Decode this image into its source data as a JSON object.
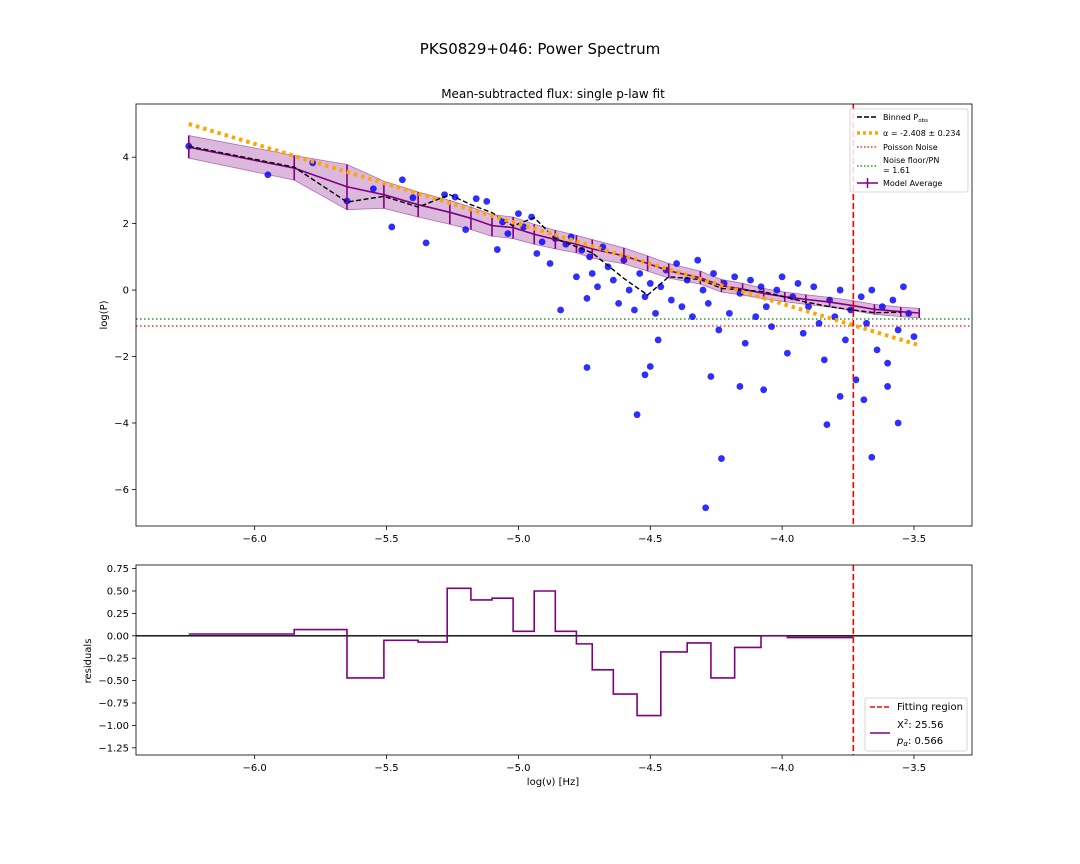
{
  "figure": {
    "suptitle": "PKS0829+046: Power Spectrum"
  },
  "colors": {
    "binned": "#000000",
    "alpha_fit": "#FFA500",
    "poisson": "#FF0000",
    "noise_floor": "#008000",
    "model": "#800080",
    "model_band": "#800080",
    "scatter": "#0000FF",
    "fit_region": "#FF0000"
  },
  "chart_data": [
    {
      "type": "scatter",
      "title": "Mean-subtracted flux: single p-law fit",
      "xlabel": "",
      "ylabel": "log(P)",
      "xlim": [
        -6.45,
        -3.28
      ],
      "ylim": [
        -7.1,
        5.6
      ],
      "xticks": [
        -6.0,
        -5.5,
        -5.0,
        -4.5,
        -4.0,
        -3.5
      ],
      "xtick_labels": [
        "−6.0",
        "−5.5",
        "−5.0",
        "−4.5",
        "−4.0",
        "−3.5"
      ],
      "yticks": [
        4,
        2,
        0,
        -2,
        -4,
        -6
      ],
      "ytick_labels": [
        "4",
        "2",
        "0",
        "−2",
        "−4",
        "−6"
      ],
      "legend_position": "top-right",
      "legend": {
        "binned": "Binned P",
        "binned_sub": "obs",
        "alpha": "α = -2.408 ± 0.234",
        "poisson": "Poisson Noise",
        "noise_floor_line1": "Noise floor/PN",
        "noise_floor_line2": "= 1.61",
        "model": "Model Average"
      },
      "fit_cutoff_x": -3.73,
      "poisson_noise_level": -1.08,
      "noise_floor_level": -0.87,
      "alpha_fit_line": {
        "x": [
          -6.25,
          -3.48
        ],
        "y": [
          5.0,
          -1.66
        ]
      },
      "binned_obs": {
        "x": [
          -6.25,
          -5.85,
          -5.65,
          -5.51,
          -5.38,
          -5.26,
          -5.18,
          -5.1,
          -5.02,
          -4.94,
          -4.86,
          -4.72,
          -4.6,
          -4.51,
          -4.43,
          -4.31,
          -4.23,
          -4.15,
          -4.07,
          -3.99,
          -3.91,
          -3.82,
          -3.73,
          -3.65,
          -3.55
        ],
        "y": [
          4.33,
          3.7,
          2.65,
          2.82,
          2.5,
          2.87,
          2.57,
          2.33,
          1.93,
          2.18,
          1.55,
          1.12,
          0.35,
          -0.15,
          0.4,
          0.32,
          0.05,
          0.0,
          -0.05,
          -0.21,
          -0.36,
          -0.5,
          -0.6,
          -0.68,
          -0.67
        ]
      },
      "model_average": {
        "x": [
          -6.25,
          -5.85,
          -5.65,
          -5.51,
          -5.38,
          -5.26,
          -5.18,
          -5.1,
          -5.02,
          -4.94,
          -4.86,
          -4.78,
          -4.72,
          -4.6,
          -4.51,
          -4.43,
          -4.31,
          -4.23,
          -4.15,
          -4.07,
          -3.99,
          -3.91,
          -3.82,
          -3.73,
          -3.65,
          -3.55,
          -3.48
        ],
        "y": [
          4.3,
          3.67,
          3.11,
          2.87,
          2.57,
          2.34,
          2.16,
          1.94,
          1.88,
          1.68,
          1.52,
          1.38,
          1.24,
          1.03,
          0.8,
          0.58,
          0.37,
          0.13,
          0.03,
          -0.1,
          -0.2,
          -0.28,
          -0.36,
          -0.47,
          -0.58,
          -0.65,
          -0.69
        ],
        "band_upper": [
          4.65,
          4.05,
          3.78,
          3.28,
          2.95,
          2.7,
          2.5,
          2.27,
          2.2,
          1.98,
          1.8,
          1.65,
          1.52,
          1.27,
          1.03,
          0.8,
          0.57,
          0.32,
          0.2,
          0.05,
          -0.06,
          -0.14,
          -0.22,
          -0.32,
          -0.43,
          -0.51,
          -0.55
        ],
        "band_lower": [
          3.97,
          3.31,
          2.42,
          2.46,
          2.2,
          1.98,
          1.82,
          1.62,
          1.55,
          1.38,
          1.24,
          1.12,
          0.96,
          0.79,
          0.57,
          0.36,
          0.18,
          -0.06,
          -0.15,
          -0.26,
          -0.35,
          -0.43,
          -0.51,
          -0.62,
          -0.73,
          -0.8,
          -0.84
        ]
      },
      "scatter_points": {
        "x": [
          -6.25,
          -5.95,
          -5.78,
          -5.65,
          -5.55,
          -5.48,
          -5.44,
          -5.4,
          -5.35,
          -5.28,
          -5.24,
          -5.2,
          -5.16,
          -5.12,
          -5.08,
          -5.06,
          -5.04,
          -5.0,
          -4.98,
          -4.95,
          -4.93,
          -4.91,
          -4.88,
          -4.86,
          -4.84,
          -4.82,
          -4.8,
          -4.78,
          -4.76,
          -4.74,
          -4.73,
          -4.72,
          -4.7,
          -4.68,
          -4.66,
          -4.64,
          -4.62,
          -4.6,
          -4.58,
          -4.56,
          -4.54,
          -4.52,
          -4.5,
          -4.48,
          -4.46,
          -4.44,
          -4.42,
          -4.4,
          -4.38,
          -4.36,
          -4.34,
          -4.32,
          -4.3,
          -4.28,
          -4.26,
          -4.24,
          -4.22,
          -4.2,
          -4.18,
          -4.16,
          -4.14,
          -4.12,
          -4.1,
          -4.08,
          -4.06,
          -4.04,
          -4.02,
          -4.0,
          -3.98,
          -3.96,
          -3.94,
          -3.92,
          -3.9,
          -3.88,
          -3.86,
          -3.84,
          -3.82,
          -3.8,
          -3.78,
          -3.76,
          -3.74,
          -3.72,
          -3.7,
          -3.68,
          -3.66,
          -3.64,
          -3.62,
          -3.6,
          -3.58,
          -3.56,
          -3.54,
          -3.52,
          -3.5,
          -4.55,
          -4.29,
          -4.23,
          -4.52,
          -4.5,
          -4.47,
          -4.27,
          -4.16,
          -4.07,
          -3.83,
          -3.78,
          -3.69,
          -3.6,
          -3.56,
          -3.66,
          -4.74
        ],
        "y": [
          4.33,
          3.47,
          3.83,
          2.68,
          3.05,
          1.9,
          3.32,
          2.78,
          1.42,
          2.87,
          2.8,
          1.82,
          2.75,
          2.67,
          1.22,
          2.05,
          1.7,
          2.3,
          1.9,
          2.2,
          1.1,
          1.45,
          0.8,
          1.55,
          -0.6,
          1.38,
          1.6,
          0.4,
          1.2,
          -0.25,
          1.0,
          0.5,
          0.1,
          1.3,
          0.7,
          0.3,
          -0.4,
          0.9,
          0.0,
          -0.6,
          0.5,
          -0.2,
          0.2,
          -0.7,
          0.1,
          0.6,
          -0.3,
          0.8,
          -0.5,
          0.3,
          -0.8,
          0.9,
          0.0,
          -0.4,
          0.5,
          -1.2,
          0.2,
          -0.7,
          0.4,
          -0.1,
          -1.6,
          0.3,
          -0.8,
          0.1,
          -0.5,
          -1.1,
          0.0,
          0.4,
          -1.9,
          -0.2,
          0.2,
          -1.3,
          -0.5,
          0.1,
          -1.0,
          -2.1,
          -0.3,
          -0.8,
          0.0,
          -1.5,
          -0.6,
          -2.7,
          -0.2,
          -1.0,
          0.0,
          -1.8,
          -0.5,
          -2.2,
          -0.3,
          -1.2,
          0.1,
          -0.7,
          -1.4,
          -3.75,
          -6.55,
          -5.07,
          -2.55,
          -2.3,
          -1.5,
          -2.6,
          -2.9,
          -3.0,
          -4.05,
          -3.2,
          -3.3,
          -2.9,
          -4.0,
          -5.03,
          -2.33
        ]
      }
    },
    {
      "type": "line",
      "title": "",
      "xlabel": "log(ν) [Hz]",
      "ylabel": "residuals",
      "xlim": [
        -6.45,
        -3.28
      ],
      "ylim": [
        -1.33,
        0.79
      ],
      "xticks": [
        -6.0,
        -5.5,
        -5.0,
        -4.5,
        -4.0,
        -3.5
      ],
      "xtick_labels": [
        "−6.0",
        "−5.5",
        "−5.0",
        "−4.5",
        "−4.0",
        "−3.5"
      ],
      "yticks": [
        0.75,
        0.5,
        0.25,
        0.0,
        -0.25,
        -0.5,
        -0.75,
        -1.0,
        -1.25
      ],
      "ytick_labels": [
        "0.75",
        "0.50",
        "0.25",
        "0.00",
        "−0.25",
        "−0.50",
        "−0.75",
        "−1.00",
        "−1.25"
      ],
      "legend_position": "lower-right",
      "legend": {
        "fit_region": "Fitting region",
        "chi2_label": "X",
        "chi2_sup": "2",
        "chi2_value": ": 25.56",
        "p_label": "p",
        "p_sub": "α",
        "p_value": ": 0.566"
      },
      "fit_cutoff_x": -3.73,
      "step_edges": [
        -6.25,
        -5.85,
        -5.65,
        -5.51,
        -5.38,
        -5.27,
        -5.18,
        -5.1,
        -5.02,
        -4.94,
        -4.86,
        -4.78,
        -4.72,
        -4.64,
        -4.55,
        -4.46,
        -4.36,
        -4.27,
        -4.18,
        -4.08,
        -3.98,
        -3.9,
        -3.73
      ],
      "residuals": [
        0.02,
        0.07,
        -0.47,
        -0.05,
        -0.07,
        0.53,
        0.4,
        0.42,
        0.05,
        0.5,
        0.05,
        -0.09,
        -0.38,
        -0.65,
        -0.89,
        -0.18,
        -0.08,
        -0.47,
        -0.13,
        0.0,
        -0.02,
        -0.02
      ]
    }
  ]
}
